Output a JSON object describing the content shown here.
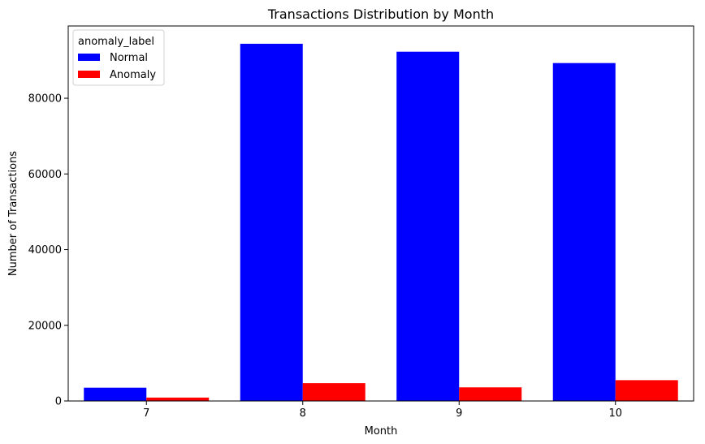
{
  "chart_data": {
    "type": "bar",
    "title": "Transactions Distribution by Month",
    "xlabel": "Month",
    "ylabel": "Number of Transactions",
    "categories": [
      "7",
      "8",
      "9",
      "10"
    ],
    "series": [
      {
        "name": "Normal",
        "color": "#0000ff",
        "values": [
          3500,
          94400,
          92300,
          89300
        ]
      },
      {
        "name": "Anomaly",
        "color": "#ff0000",
        "values": [
          900,
          4700,
          3600,
          5500
        ]
      }
    ],
    "ylim": [
      0,
      99100
    ],
    "yticks": [
      0,
      20000,
      40000,
      60000,
      80000
    ],
    "grid": false,
    "legend": {
      "title": "anomaly_label",
      "placement": "top-left"
    }
  }
}
